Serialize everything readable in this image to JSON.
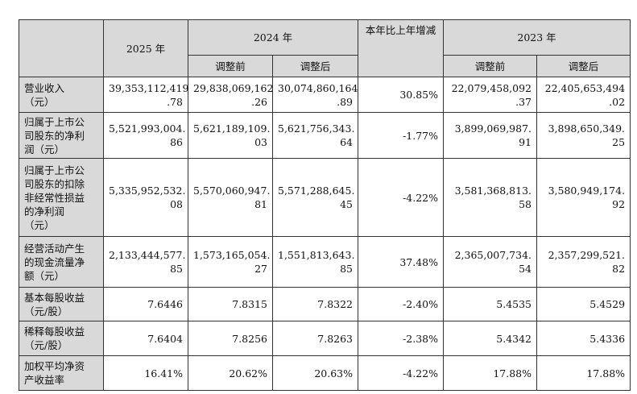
{
  "header": {
    "y2025": "2025 年",
    "y2024": "2024 年",
    "change": "本年比上年增减",
    "y2023": "2023 年",
    "before": "调整前",
    "after": "调整后"
  },
  "rows": [
    {
      "label": "营业收入\n（元）",
      "c2025": "39,353,112,419\n.78",
      "c2024b": "29,838,069,162\n.26",
      "c2024a": "30,074,860,164\n.89",
      "chg": "30.85%",
      "c2023b": "22,079,458,092\n.37",
      "c2023a": "22,405,653,494\n.02"
    },
    {
      "label": "归属于上市公\n司股东的净利\n润（元）",
      "c2025": "5,521,993,004.\n86",
      "c2024b": "5,621,189,109.\n03",
      "c2024a": "5,621,756,343.\n64",
      "chg": "-1.77%",
      "c2023b": "3,899,069,987.\n91",
      "c2023a": "3,898,650,349.\n25"
    },
    {
      "label": "归属于上市公\n司股东的扣除\n非经常性损益\n的净利润\n（元）",
      "c2025": "5,335,952,532.\n08",
      "c2024b": "5,570,060,947.\n81",
      "c2024a": "5,571,288,645.\n45",
      "chg": "-4.22%",
      "c2023b": "3,581,368,813.\n58",
      "c2023a": "3,580,949,174.\n92"
    },
    {
      "label": "经营活动产生\n的现金流量净\n额（元）",
      "c2025": "2,133,444,577.\n85",
      "c2024b": "1,573,165,054.\n27",
      "c2024a": "1,551,813,643.\n85",
      "chg": "37.48%",
      "c2023b": "2,365,007,734.\n54",
      "c2023a": "2,357,299,521.\n82"
    },
    {
      "label": "基本每股收益\n（元/股）",
      "c2025": "7.6446",
      "c2024b": "7.8315",
      "c2024a": "7.8322",
      "chg": "-2.40%",
      "c2023b": "5.4535",
      "c2023a": "5.4529"
    },
    {
      "label": "稀释每股收益\n（元/股）",
      "c2025": "7.6404",
      "c2024b": "7.8256",
      "c2024a": "7.8263",
      "chg": "-2.38%",
      "c2023b": "5.4342",
      "c2023a": "5.4336"
    },
    {
      "label": "加权平均净资\n产收益率",
      "c2025": "16.41%",
      "c2024b": "20.62%",
      "c2024a": "20.63%",
      "chg": "-4.22%",
      "c2023b": "17.88%",
      "c2023a": "17.88%"
    }
  ]
}
